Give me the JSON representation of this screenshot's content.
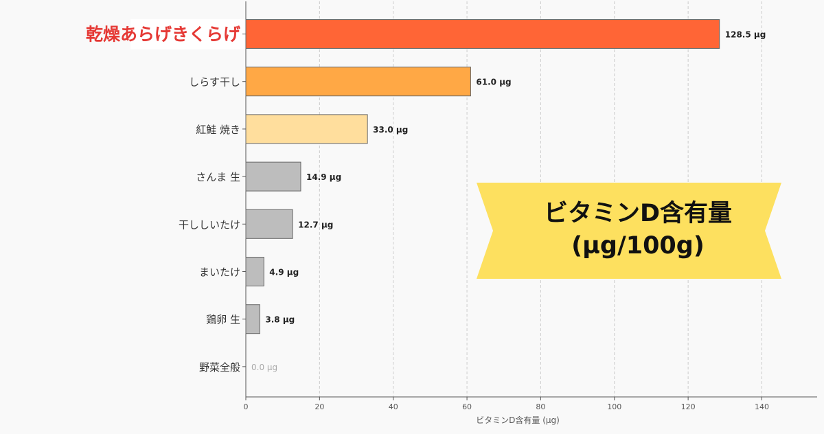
{
  "chart_data": {
    "type": "bar",
    "orientation": "horizontal",
    "categories": [
      "乾燥あらげきくらげ",
      "しらす干し",
      "紅鮭 焼き",
      "さんま 生",
      "干ししいたけ",
      "まいたけ",
      "鶏卵 生",
      "野菜全般"
    ],
    "values": [
      128.5,
      61.0,
      33.0,
      14.9,
      12.7,
      4.9,
      3.8,
      0.0
    ],
    "value_labels": [
      "128.5 µg",
      "61.0 µg",
      "33.0 µg",
      "14.9 µg",
      "12.7 µg",
      "4.9 µg",
      "3.8 µg",
      "0.0 µg"
    ],
    "bar_colors": [
      "#ff6536",
      "#ffa845",
      "#ffde9d",
      "#bdbdbd",
      "#bdbdbd",
      "#bdbdbd",
      "#bdbdbd",
      "#bdbdbd"
    ],
    "highlight_label_color": "#e53935",
    "xlabel": "ビタミンD含有量 (µg)",
    "xlim": [
      0,
      155
    ],
    "xticks": [
      0,
      20,
      40,
      60,
      80,
      100,
      120,
      140
    ],
    "grid": "vertical dashed"
  },
  "badge": {
    "line1": "ビタミンD含有量",
    "line2": "(µg/100g)",
    "color": "#fde05f"
  }
}
